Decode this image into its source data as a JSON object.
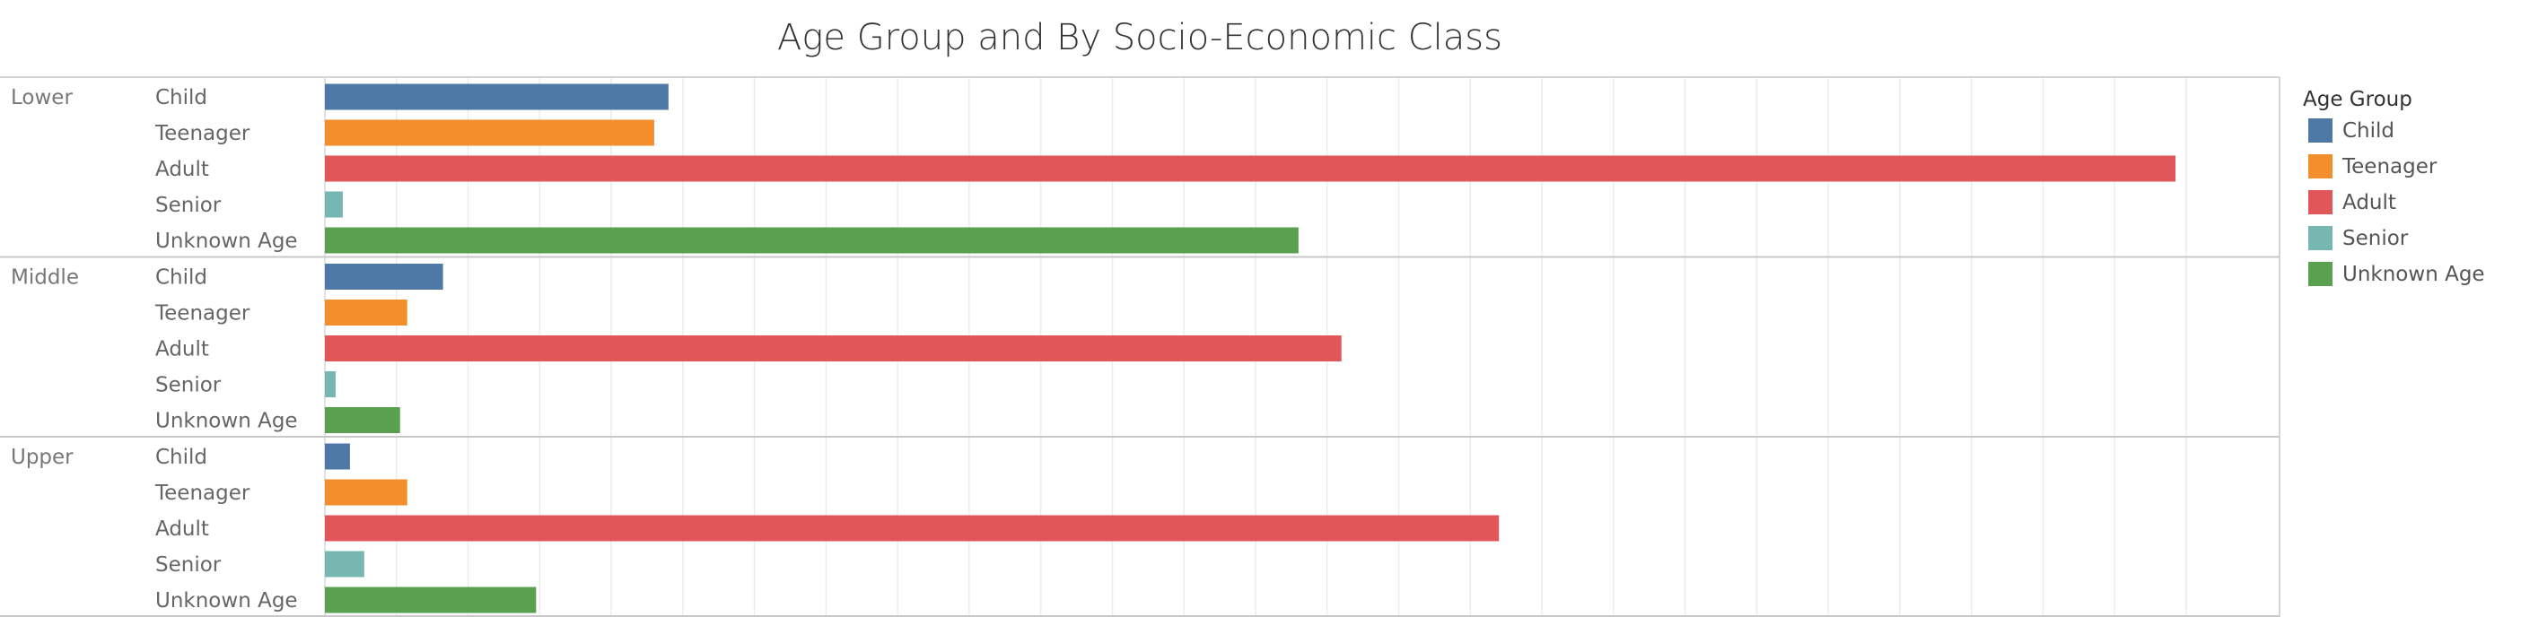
{
  "chart_data": {
    "type": "bar",
    "orientation": "horizontal",
    "title": "Age Group and By Socio-Economic Class",
    "xlabel": "",
    "ylabel": "",
    "xlim": [
      0,
      520
    ],
    "grid": true,
    "legend": {
      "title": "Age Group",
      "placement": "right"
    },
    "groups": [
      "Lower",
      "Middle",
      "Upper"
    ],
    "categories": [
      "Child",
      "Teenager",
      "Adult",
      "Senior",
      "Unknown Age"
    ],
    "colors": [
      "#4e79a7",
      "#f28e2b",
      "#e15759",
      "#76b7b2",
      "#59a14f"
    ],
    "series": [
      {
        "group": "Lower",
        "values": [
          96,
          92,
          517,
          5,
          272
        ]
      },
      {
        "group": "Middle",
        "values": [
          33,
          23,
          284,
          3,
          21
        ]
      },
      {
        "group": "Upper",
        "values": [
          7,
          23,
          328,
          11,
          59
        ]
      }
    ]
  }
}
